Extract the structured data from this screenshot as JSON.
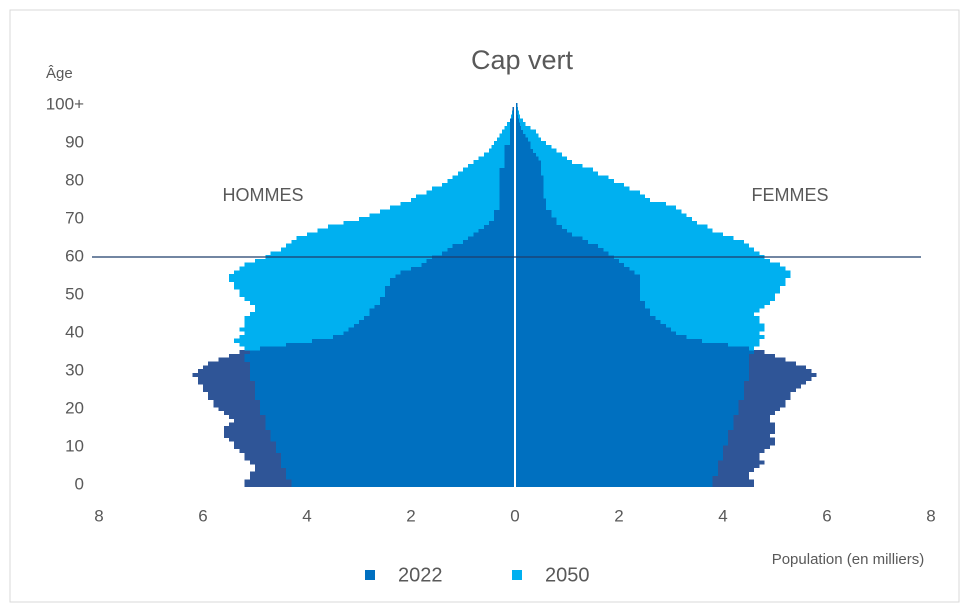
{
  "chart_data": {
    "type": "pyramid",
    "title": "Cap vert",
    "y_label": "Âge",
    "x_label": "Population (en milliers)",
    "left_label": "HOMMES",
    "right_label": "FEMMES",
    "xlim": [
      -8,
      8
    ],
    "xticks": [
      {
        "value": -8,
        "label": "8"
      },
      {
        "value": -6,
        "label": "6"
      },
      {
        "value": -4,
        "label": "4"
      },
      {
        "value": -2,
        "label": "2"
      },
      0,
      2,
      4,
      6,
      8
    ],
    "ylim": [
      0,
      100
    ],
    "yticks": [
      0,
      10,
      20,
      30,
      40,
      50,
      60,
      70,
      80,
      90,
      {
        "value": 100,
        "label": "100+"
      }
    ],
    "reference_line": 60,
    "excess_color": "#2f5597",
    "ages": [
      0,
      1,
      2,
      3,
      4,
      5,
      6,
      7,
      8,
      9,
      10,
      11,
      12,
      13,
      14,
      15,
      16,
      17,
      18,
      19,
      20,
      21,
      22,
      23,
      24,
      25,
      26,
      27,
      28,
      29,
      30,
      31,
      32,
      33,
      34,
      35,
      36,
      37,
      38,
      39,
      40,
      41,
      42,
      43,
      44,
      45,
      46,
      47,
      48,
      49,
      50,
      51,
      52,
      53,
      54,
      55,
      56,
      57,
      58,
      59,
      60,
      61,
      62,
      63,
      64,
      65,
      66,
      67,
      68,
      69,
      70,
      71,
      72,
      73,
      74,
      75,
      76,
      77,
      78,
      79,
      80,
      81,
      82,
      83,
      84,
      85,
      86,
      87,
      88,
      89,
      90,
      91,
      92,
      93,
      94,
      95,
      96,
      97,
      98,
      99,
      100
    ],
    "series": [
      {
        "name": "2022",
        "color": "#0070c0",
        "men": [
          -5.2,
          -5.2,
          -5.1,
          -5.1,
          -5.0,
          -5.0,
          -5.1,
          -5.2,
          -5.2,
          -5.3,
          -5.4,
          -5.4,
          -5.5,
          -5.6,
          -5.6,
          -5.6,
          -5.5,
          -5.4,
          -5.5,
          -5.6,
          -5.7,
          -5.8,
          -5.8,
          -5.9,
          -5.9,
          -6.0,
          -6.0,
          -6.1,
          -6.1,
          -6.2,
          -6.1,
          -6.0,
          -5.9,
          -5.7,
          -5.5,
          -5.3,
          -4.9,
          -4.4,
          -3.9,
          -3.5,
          -3.3,
          -3.2,
          -3.1,
          -3.0,
          -2.9,
          -2.8,
          -2.8,
          -2.7,
          -2.6,
          -2.6,
          -2.5,
          -2.5,
          -2.5,
          -2.4,
          -2.4,
          -2.3,
          -2.2,
          -2.0,
          -1.8,
          -1.7,
          -1.6,
          -1.4,
          -1.3,
          -1.2,
          -1.0,
          -0.9,
          -0.8,
          -0.7,
          -0.6,
          -0.5,
          -0.4,
          -0.4,
          -0.4,
          -0.3,
          -0.3,
          -0.3,
          -0.3,
          -0.3,
          -0.3,
          -0.3,
          -0.3,
          -0.3,
          -0.3,
          -0.3,
          -0.2,
          -0.2,
          -0.2,
          -0.2,
          -0.2,
          -0.2,
          -0.1,
          -0.1,
          -0.1,
          -0.1,
          -0.1,
          -0.1,
          -0.1,
          -0.05,
          -0.05,
          -0.05,
          -0.02
        ],
        "women": [
          4.6,
          4.6,
          4.5,
          4.5,
          4.6,
          4.7,
          4.8,
          4.7,
          4.7,
          4.8,
          4.9,
          5.0,
          5.0,
          4.9,
          5.0,
          5.0,
          5.0,
          4.9,
          4.9,
          5.0,
          5.1,
          5.2,
          5.2,
          5.3,
          5.3,
          5.4,
          5.5,
          5.6,
          5.7,
          5.8,
          5.7,
          5.6,
          5.4,
          5.2,
          5.0,
          4.8,
          4.5,
          4.1,
          3.6,
          3.3,
          3.1,
          3.0,
          2.9,
          2.8,
          2.7,
          2.6,
          2.6,
          2.5,
          2.5,
          2.4,
          2.4,
          2.4,
          2.4,
          2.4,
          2.4,
          2.4,
          2.3,
          2.2,
          2.1,
          2.0,
          1.9,
          1.8,
          1.7,
          1.6,
          1.4,
          1.3,
          1.1,
          1.0,
          0.9,
          0.8,
          0.8,
          0.7,
          0.7,
          0.6,
          0.6,
          0.6,
          0.55,
          0.55,
          0.55,
          0.55,
          0.55,
          0.55,
          0.5,
          0.5,
          0.5,
          0.5,
          0.45,
          0.4,
          0.35,
          0.3,
          0.3,
          0.25,
          0.2,
          0.15,
          0.12,
          0.1,
          0.08,
          0.06,
          0.05,
          0.05,
          0.05
        ]
      },
      {
        "name": "2050",
        "color": "#00b0f0",
        "men": [
          -4.3,
          -4.3,
          -4.4,
          -4.4,
          -4.4,
          -4.5,
          -4.5,
          -4.5,
          -4.5,
          -4.6,
          -4.6,
          -4.6,
          -4.7,
          -4.7,
          -4.7,
          -4.8,
          -4.8,
          -4.8,
          -4.8,
          -4.9,
          -4.9,
          -4.9,
          -4.9,
          -5.0,
          -5.0,
          -5.0,
          -5.0,
          -5.0,
          -5.1,
          -5.1,
          -5.1,
          -5.1,
          -5.1,
          -5.2,
          -5.2,
          -5.1,
          -5.2,
          -5.3,
          -5.4,
          -5.3,
          -5.2,
          -5.3,
          -5.2,
          -5.2,
          -5.2,
          -5.1,
          -5.0,
          -5.0,
          -5.1,
          -5.2,
          -5.3,
          -5.3,
          -5.4,
          -5.4,
          -5.5,
          -5.5,
          -5.4,
          -5.3,
          -5.2,
          -5.0,
          -4.8,
          -4.7,
          -4.5,
          -4.4,
          -4.3,
          -4.2,
          -4.0,
          -3.8,
          -3.6,
          -3.3,
          -3.0,
          -2.8,
          -2.6,
          -2.4,
          -2.2,
          -2.0,
          -1.9,
          -1.7,
          -1.6,
          -1.4,
          -1.3,
          -1.2,
          -1.1,
          -1.0,
          -0.9,
          -0.8,
          -0.7,
          -0.6,
          -0.5,
          -0.45,
          -0.4,
          -0.35,
          -0.3,
          -0.25,
          -0.2,
          -0.15,
          -0.1,
          -0.08,
          -0.06,
          -0.04,
          -0.02
        ],
        "women": [
          3.8,
          3.8,
          3.8,
          3.9,
          3.9,
          3.9,
          3.9,
          4.0,
          4.0,
          4.0,
          4.0,
          4.1,
          4.1,
          4.1,
          4.1,
          4.2,
          4.2,
          4.2,
          4.2,
          4.3,
          4.3,
          4.3,
          4.3,
          4.4,
          4.4,
          4.4,
          4.4,
          4.4,
          4.5,
          4.5,
          4.5,
          4.5,
          4.5,
          4.5,
          4.5,
          4.6,
          4.6,
          4.7,
          4.7,
          4.8,
          4.7,
          4.8,
          4.8,
          4.7,
          4.7,
          4.6,
          4.7,
          4.8,
          4.9,
          5.0,
          5.0,
          5.1,
          5.1,
          5.2,
          5.2,
          5.3,
          5.3,
          5.2,
          5.1,
          4.9,
          4.8,
          4.7,
          4.6,
          4.5,
          4.4,
          4.2,
          4.0,
          3.8,
          3.7,
          3.5,
          3.4,
          3.3,
          3.2,
          3.1,
          2.9,
          2.6,
          2.5,
          2.4,
          2.2,
          2.1,
          1.9,
          1.8,
          1.6,
          1.5,
          1.3,
          1.1,
          1.0,
          0.9,
          0.8,
          0.7,
          0.6,
          0.5,
          0.45,
          0.4,
          0.3,
          0.2,
          0.15,
          0.1,
          0.08,
          0.06,
          0.05
        ]
      }
    ]
  }
}
